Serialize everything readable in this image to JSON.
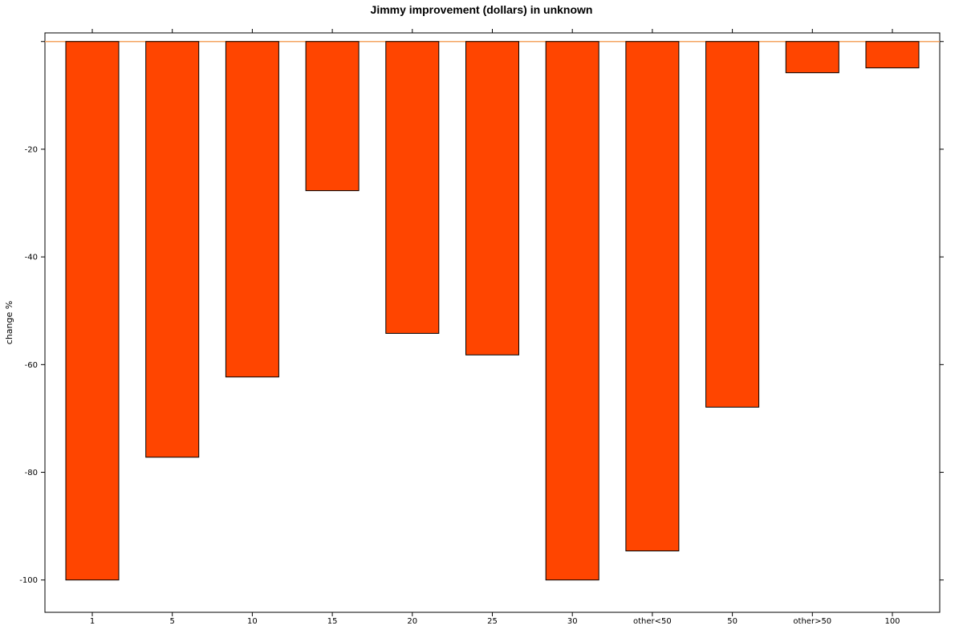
{
  "chart_data": {
    "type": "bar",
    "title": "Jimmy improvement (dollars) in unknown",
    "xlabel": "",
    "ylabel": "change %",
    "categories": [
      "1",
      "5",
      "10",
      "15",
      "20",
      "25",
      "30",
      "other<50",
      "50",
      "other>50",
      "100"
    ],
    "values": [
      -100,
      -77.2,
      -62.3,
      -27.7,
      -54.2,
      -58.2,
      -100,
      -94.6,
      -67.9,
      -5.8,
      -4.9
    ],
    "ylim": [
      -106,
      1.6
    ],
    "yticks": [
      -20,
      -40,
      -60,
      -80,
      -100
    ],
    "ytick_labels": [
      "-20",
      "-40",
      "-60",
      "-80",
      "-100"
    ],
    "reference_line": 0,
    "grid": false,
    "colors": {
      "bar_fill": "#ff4500",
      "bar_stroke": "#000000",
      "reference_line": "#f4a460",
      "frame": "#000000"
    }
  }
}
